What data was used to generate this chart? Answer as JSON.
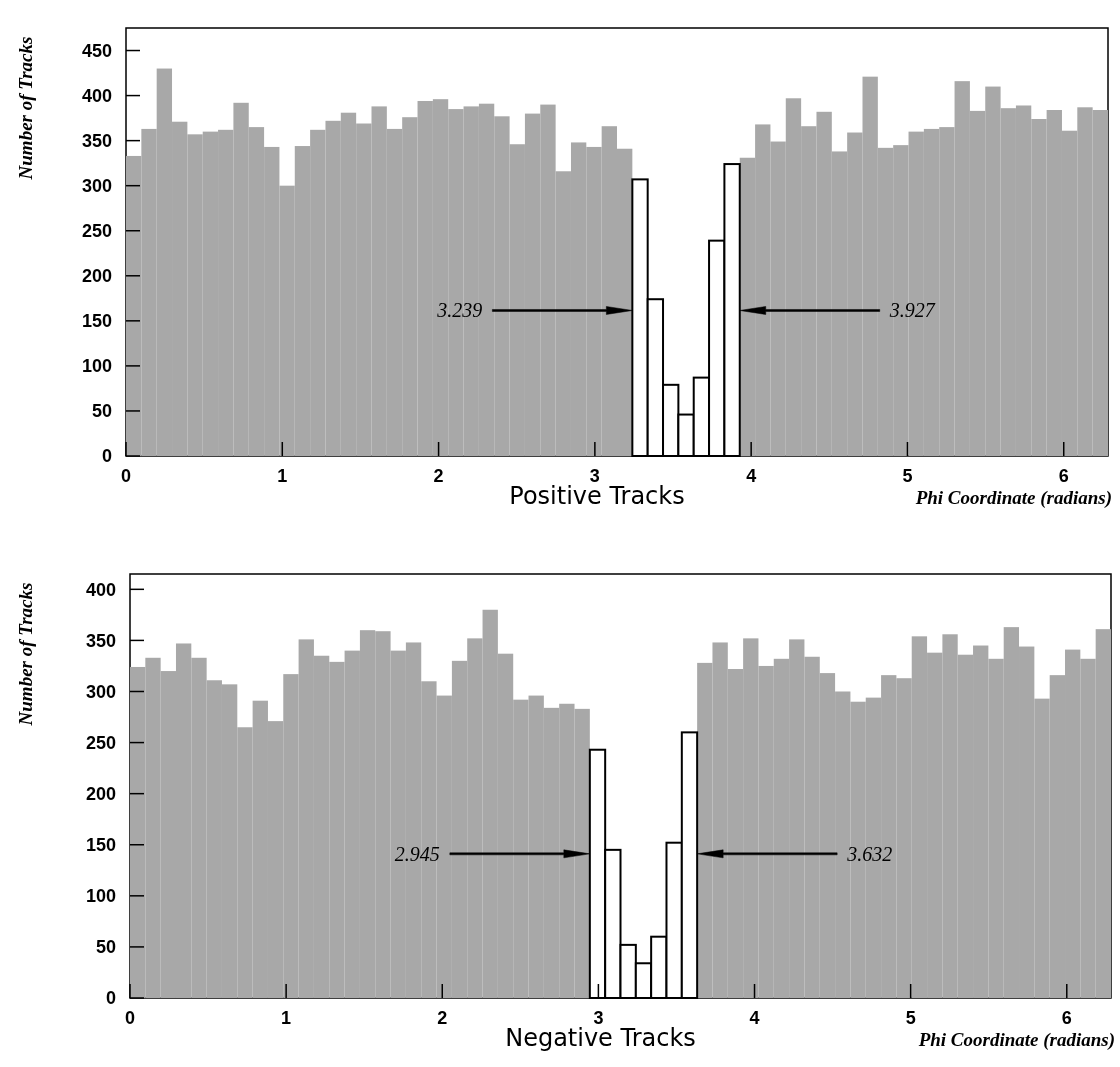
{
  "chart_data": [
    {
      "type": "histogram",
      "title": "Positive Tracks",
      "xlabel": "Phi Coordinate (radians)",
      "ylabel": "Number of Tracks",
      "bins": [
        0,
        0.0982,
        0.1963,
        0.2945,
        0.3927,
        0.4909,
        0.589,
        0.6872,
        0.7854,
        0.8836,
        0.9817,
        1.0799,
        1.1781,
        1.2763,
        1.3744,
        1.4726,
        1.5708,
        1.669,
        1.7671,
        1.8653,
        1.9635,
        2.0617,
        2.1598,
        2.258,
        2.3562,
        2.4544,
        2.5525,
        2.6507,
        2.7489,
        2.8471,
        2.9452,
        3.0434,
        3.1416,
        3.2398,
        3.3379,
        3.4361,
        3.5343,
        3.6325,
        3.7306,
        3.8288,
        3.927,
        4.0252,
        4.1233,
        4.2215,
        4.3197,
        4.4179,
        4.516,
        4.6142,
        4.7124,
        4.8106,
        4.9087,
        5.0069,
        5.1051,
        5.2033,
        5.3014,
        5.3996,
        5.4978,
        5.596,
        5.6941,
        5.7923,
        5.8905,
        5.9887,
        6.0868,
        6.185,
        6.2832
      ],
      "series": [
        {
          "color": "#a8a8a8",
          "values": [
            333,
            363,
            430,
            371,
            357,
            360,
            362,
            392,
            365,
            343,
            300,
            344,
            362,
            372,
            381,
            369,
            388,
            363,
            376,
            394,
            396,
            385,
            388,
            391,
            377,
            346,
            380,
            390,
            316,
            348,
            343,
            366,
            341,
            null,
            null,
            null,
            null,
            null,
            null,
            null,
            331,
            368,
            349,
            397,
            366,
            382,
            338,
            359,
            421,
            342,
            345,
            360,
            363,
            365,
            416,
            383,
            410,
            386,
            389,
            374,
            384,
            361,
            387,
            384
          ]
        },
        {
          "color": "#ffffff",
          "values": [
            null,
            null,
            null,
            null,
            null,
            null,
            null,
            null,
            null,
            null,
            null,
            null,
            null,
            null,
            null,
            null,
            null,
            null,
            null,
            null,
            null,
            null,
            null,
            null,
            null,
            null,
            null,
            null,
            null,
            null,
            null,
            null,
            null,
            307,
            174,
            79,
            46,
            87,
            239,
            324,
            null,
            null,
            null,
            null,
            null,
            null,
            null,
            null,
            null,
            null,
            null,
            null,
            null,
            null,
            null,
            null,
            null,
            null,
            null,
            null,
            null,
            null,
            null,
            null
          ]
        }
      ],
      "xlim": [
        0,
        6.2832
      ],
      "xticks": [
        0,
        1,
        2,
        3,
        4,
        5,
        6
      ],
      "ylim": [
        0,
        475
      ],
      "yticks": [
        0,
        50,
        100,
        150,
        200,
        250,
        300,
        350,
        400,
        450
      ],
      "annotations": [
        "3.239",
        "3.927"
      ]
    },
    {
      "type": "histogram",
      "title": "Negative Tracks",
      "xlabel": "Phi Coordinate (radians)",
      "ylabel": "Number of Tracks",
      "bins": [
        0,
        0.0982,
        0.1963,
        0.2945,
        0.3927,
        0.4909,
        0.589,
        0.6872,
        0.7854,
        0.8836,
        0.9817,
        1.0799,
        1.1781,
        1.2763,
        1.3744,
        1.4726,
        1.5708,
        1.669,
        1.7671,
        1.8653,
        1.9635,
        2.0617,
        2.1598,
        2.258,
        2.3562,
        2.4544,
        2.5525,
        2.6507,
        2.7489,
        2.8471,
        2.9452,
        3.0434,
        3.1416,
        3.2398,
        3.3379,
        3.4361,
        3.5343,
        3.6325,
        3.7306,
        3.8288,
        3.927,
        4.0252,
        4.1233,
        4.2215,
        4.3197,
        4.4179,
        4.516,
        4.6142,
        4.7124,
        4.8106,
        4.9087,
        5.0069,
        5.1051,
        5.2033,
        5.3014,
        5.3996,
        5.4978,
        5.596,
        5.6941,
        5.7923,
        5.8905,
        5.9887,
        6.0868,
        6.185,
        6.2832
      ],
      "series": [
        {
          "color": "#a8a8a8",
          "values": [
            324,
            333,
            320,
            347,
            333,
            311,
            307,
            265,
            291,
            271,
            317,
            351,
            335,
            329,
            340,
            360,
            359,
            340,
            348,
            310,
            296,
            330,
            352,
            380,
            337,
            292,
            296,
            284,
            288,
            283,
            null,
            null,
            null,
            null,
            null,
            null,
            null,
            328,
            348,
            322,
            352,
            325,
            332,
            351,
            334,
            318,
            300,
            290,
            294,
            316,
            313,
            354,
            338,
            356,
            336,
            345,
            332,
            363,
            344,
            293,
            316,
            341,
            332,
            361
          ]
        },
        {
          "color": "#ffffff",
          "values": [
            null,
            null,
            null,
            null,
            null,
            null,
            null,
            null,
            null,
            null,
            null,
            null,
            null,
            null,
            null,
            null,
            null,
            null,
            null,
            null,
            null,
            null,
            null,
            null,
            null,
            null,
            null,
            null,
            null,
            null,
            243,
            145,
            52,
            34,
            60,
            152,
            260,
            null,
            null,
            null,
            null,
            null,
            null,
            null,
            null,
            null,
            null,
            null,
            null,
            null,
            null,
            null,
            null,
            null,
            null,
            null,
            null,
            null,
            null,
            null,
            null,
            null,
            null,
            null
          ]
        }
      ],
      "xlim": [
        0,
        6.2832
      ],
      "xticks": [
        0,
        1,
        2,
        3,
        4,
        5,
        6
      ],
      "ylim": [
        0,
        415
      ],
      "yticks": [
        0,
        50,
        100,
        150,
        200,
        250,
        300,
        350,
        400
      ],
      "annotations": [
        "2.945",
        "3.632"
      ]
    }
  ]
}
